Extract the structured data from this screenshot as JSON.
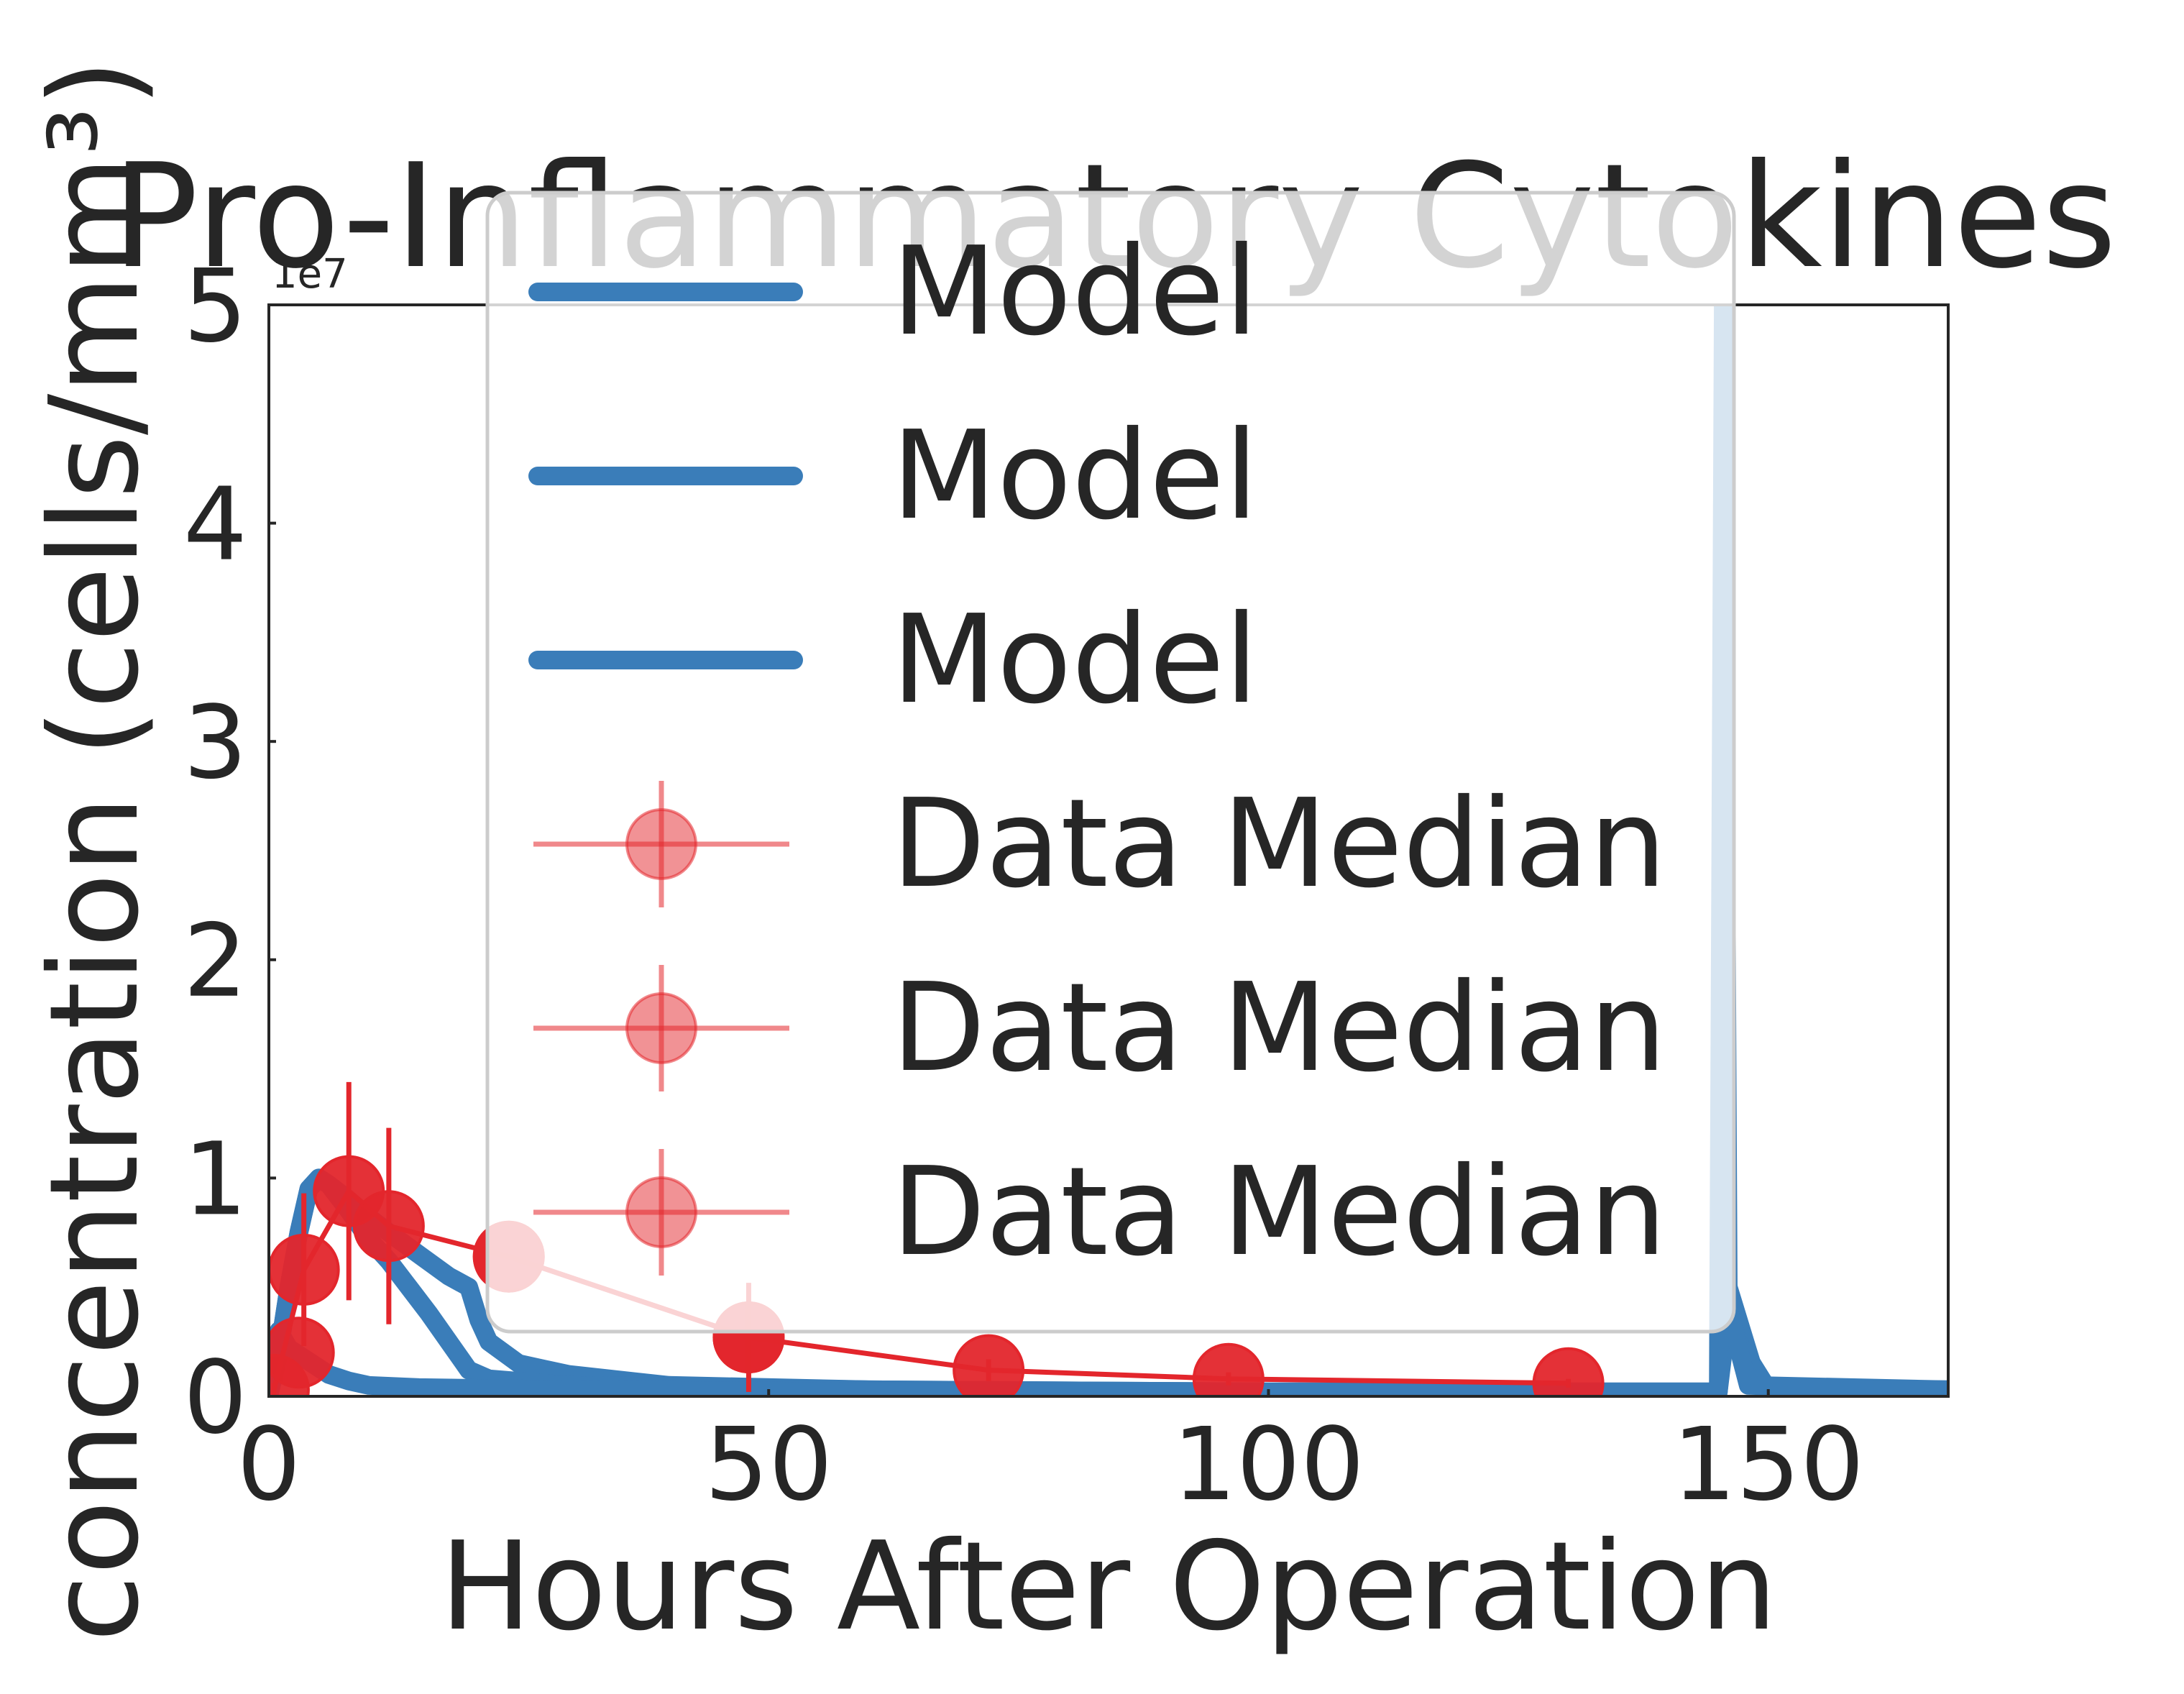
{
  "chart_data": {
    "type": "line",
    "title": "Pro-Inflammatory Cytokines",
    "xlabel": "Hours After Operation",
    "ylabel": "concentration (cells/mm³)",
    "y_scale_label": "1e7",
    "xlim": [
      0,
      168
    ],
    "ylim": [
      0,
      5
    ],
    "y_unit_multiplier": 10000000,
    "x_ticks": [
      0,
      50,
      100,
      150
    ],
    "x_tick_labels": [
      "0",
      "50",
      "100",
      "150"
    ],
    "y_ticks": [
      0,
      1,
      2,
      3,
      4,
      5
    ],
    "y_tick_labels": [
      "0",
      "1",
      "2",
      "3",
      "4",
      "5"
    ],
    "grid": false,
    "legend_position": "upper center",
    "colors": {
      "model": "#3a7db9",
      "data": "#e3262c"
    },
    "model_series": [
      {
        "name": "Model",
        "points": [
          [
            0,
            0
          ],
          [
            1,
            0.2
          ],
          [
            2,
            0.5
          ],
          [
            3,
            0.75
          ],
          [
            4,
            0.95
          ],
          [
            5,
            1.0
          ],
          [
            6,
            0.97
          ],
          [
            8,
            0.9
          ],
          [
            10,
            0.82
          ],
          [
            12,
            0.75
          ],
          [
            15,
            0.65
          ],
          [
            18,
            0.55
          ],
          [
            20,
            0.5
          ],
          [
            21,
            0.35
          ],
          [
            22,
            0.25
          ],
          [
            25,
            0.15
          ],
          [
            30,
            0.1
          ],
          [
            40,
            0.05
          ],
          [
            60,
            0.03
          ],
          [
            100,
            0.02
          ],
          [
            145,
            0.02
          ],
          [
            146,
            0.5
          ],
          [
            147,
            0.35
          ],
          [
            149,
            0.05
          ],
          [
            151,
            0.03
          ],
          [
            168,
            0.03
          ]
        ]
      },
      {
        "name": "Model",
        "points": [
          [
            0,
            0
          ],
          [
            1,
            0.2
          ],
          [
            2,
            0.5
          ],
          [
            3,
            0.75
          ],
          [
            4,
            0.95
          ],
          [
            5,
            1.0
          ],
          [
            6,
            0.97
          ],
          [
            8,
            0.85
          ],
          [
            10,
            0.72
          ],
          [
            12,
            0.62
          ],
          [
            14,
            0.5
          ],
          [
            16,
            0.38
          ],
          [
            18,
            0.25
          ],
          [
            20,
            0.12
          ],
          [
            22,
            0.08
          ],
          [
            30,
            0.05
          ],
          [
            60,
            0.03
          ],
          [
            100,
            0.02
          ],
          [
            145,
            0.02
          ],
          [
            146,
            0.4
          ],
          [
            147,
            0.25
          ],
          [
            150,
            0.03
          ],
          [
            168,
            0.03
          ]
        ]
      },
      {
        "name": "Model",
        "points": [
          [
            0,
            0
          ],
          [
            1,
            0.3
          ],
          [
            2,
            0.22
          ],
          [
            4,
            0.16
          ],
          [
            6,
            0.1
          ],
          [
            8,
            0.07
          ],
          [
            10,
            0.05
          ],
          [
            15,
            0.04
          ],
          [
            30,
            0.03
          ],
          [
            60,
            0.02
          ],
          [
            145,
            0.02
          ],
          [
            145.5,
            5.0
          ],
          [
            146,
            0.4
          ],
          [
            148,
            0.05
          ],
          [
            168,
            0.03
          ]
        ]
      }
    ],
    "data_series": [
      {
        "name": "Data Median",
        "x": [
          0.5,
          3.5,
          8,
          12,
          24,
          48,
          72,
          96,
          130
        ],
        "y": [
          0.03,
          0.58,
          0.94,
          0.78,
          0.64,
          0.27,
          0.12,
          0.08,
          0.06
        ],
        "yerr": [
          0.03,
          0.35,
          0.5,
          0.45,
          0.0,
          0.25,
          0.05,
          0.03,
          0.02
        ]
      },
      {
        "name": "Data Median",
        "x": [
          3
        ],
        "y": [
          0.2
        ],
        "yerr": [
          0.0
        ]
      },
      {
        "name": "Data Median",
        "x": [
          24,
          48
        ],
        "y": [
          0.64,
          0.27
        ],
        "yerr": [
          0.0,
          0.0
        ]
      }
    ]
  }
}
